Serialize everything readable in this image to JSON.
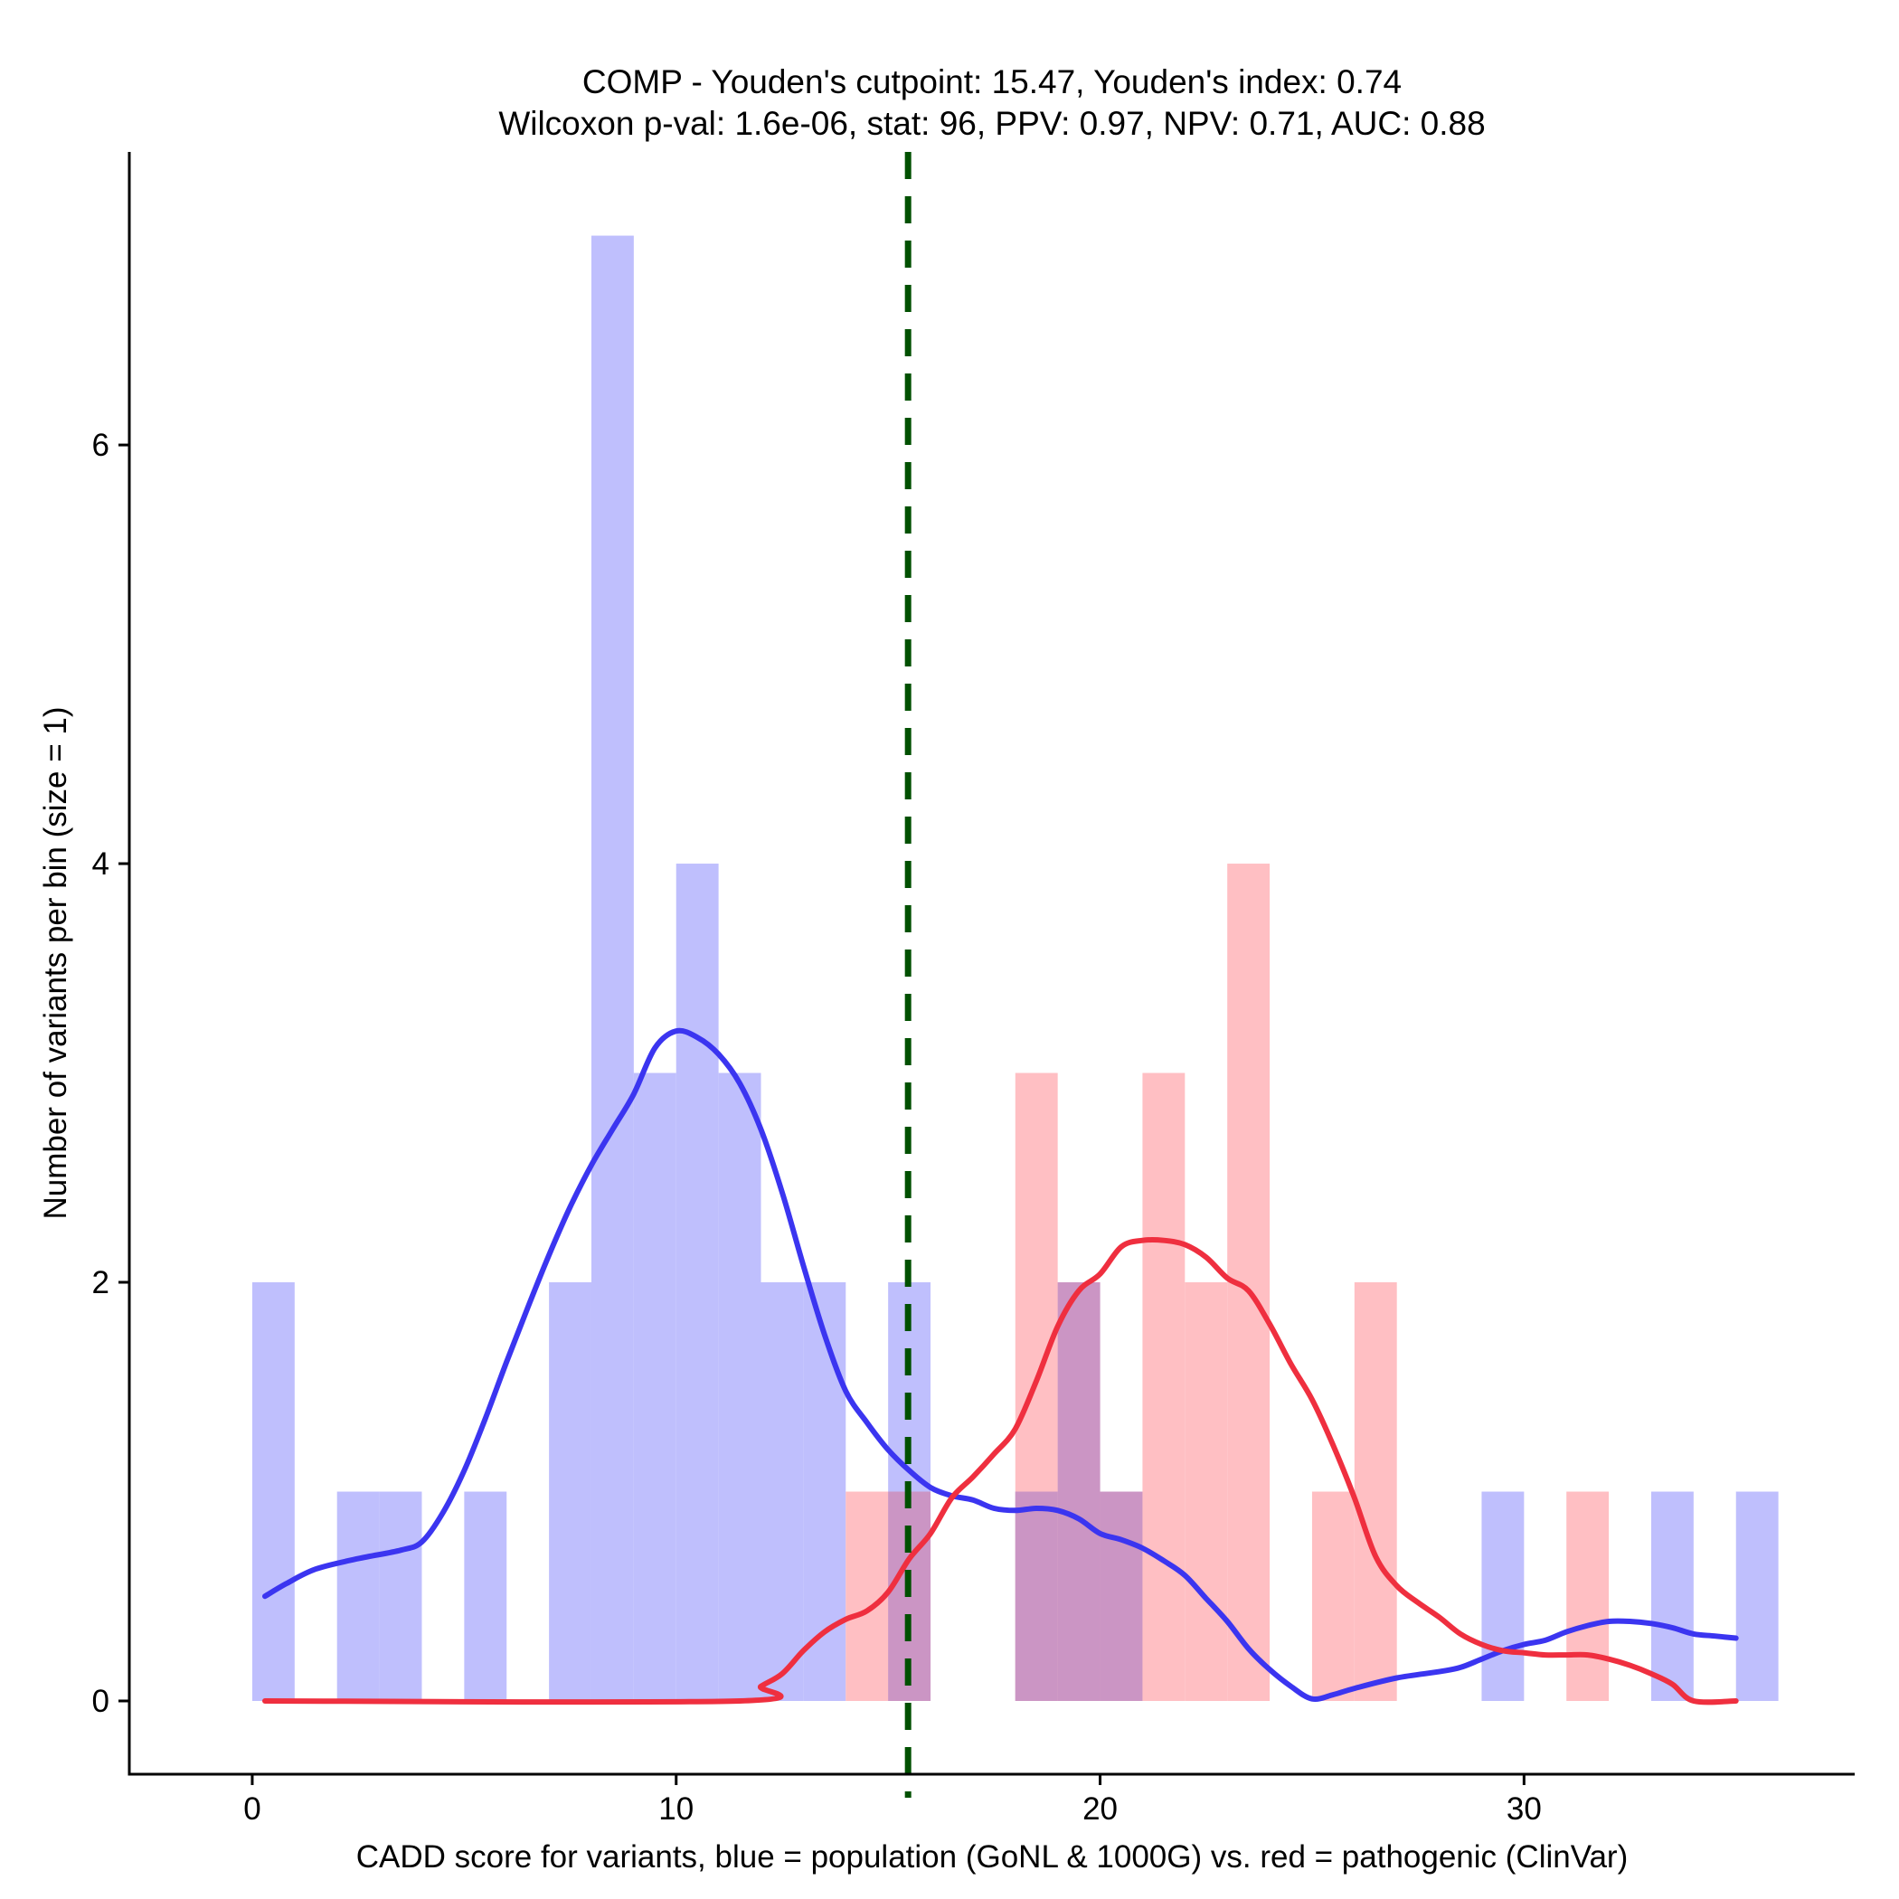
{
  "chart_data": {
    "type": "histogram",
    "title": "COMP - Youden's cutpoint: 15.47, Youden's index: 0.74",
    "subtitle": "Wilcoxon p-val: 1.6e-06, stat: 96, PPV: 0.97, NPV: 0.71, AUC: 0.88",
    "xlabel": "CADD score for variants, blue = population (GoNL & 1000G) vs. red = pathogenic (ClinVar)",
    "ylabel": "Number of variants per bin (size = 1)",
    "xlim": [
      -2.9,
      37.8
    ],
    "ylim": [
      -0.35,
      7.4
    ],
    "x_ticks": [
      0,
      10,
      20,
      30
    ],
    "y_ticks": [
      0,
      2,
      4,
      6
    ],
    "bin_width": 1,
    "cutpoint": 15.47,
    "colors": {
      "population_bar": "#bfbffd",
      "pathogenic_bar": "#ffbfc3",
      "overlap_bar": "#cb95c4",
      "population_line": "#3b35f0",
      "pathogenic_line": "#ef2f3f",
      "cutpoint_line": "#005000"
    },
    "series": [
      {
        "name": "population (GoNL & 1000G)",
        "bins": [
          {
            "x": 0,
            "count": 2
          },
          {
            "x": 2,
            "count": 1
          },
          {
            "x": 3,
            "count": 1
          },
          {
            "x": 5,
            "count": 1
          },
          {
            "x": 7,
            "count": 2
          },
          {
            "x": 8,
            "count": 7
          },
          {
            "x": 9,
            "count": 3
          },
          {
            "x": 10,
            "count": 4
          },
          {
            "x": 11,
            "count": 3
          },
          {
            "x": 12,
            "count": 2
          },
          {
            "x": 13,
            "count": 2
          },
          {
            "x": 15,
            "count": 2
          },
          {
            "x": 18,
            "count": 1
          },
          {
            "x": 19,
            "count": 2
          },
          {
            "x": 20,
            "count": 1
          },
          {
            "x": 29,
            "count": 1
          },
          {
            "x": 33,
            "count": 1
          },
          {
            "x": 35,
            "count": 1
          }
        ],
        "density": [
          [
            0.3,
            0.5
          ],
          [
            0.8,
            0.56
          ],
          [
            1.5,
            0.63
          ],
          [
            2.5,
            0.68
          ],
          [
            3.5,
            0.72
          ],
          [
            4.0,
            0.76
          ],
          [
            4.5,
            0.9
          ],
          [
            5.0,
            1.1
          ],
          [
            5.5,
            1.35
          ],
          [
            6.0,
            1.62
          ],
          [
            6.5,
            1.88
          ],
          [
            7.0,
            2.13
          ],
          [
            7.5,
            2.36
          ],
          [
            8.0,
            2.56
          ],
          [
            8.5,
            2.73
          ],
          [
            9.0,
            2.9
          ],
          [
            9.5,
            3.12
          ],
          [
            10.0,
            3.2
          ],
          [
            10.5,
            3.17
          ],
          [
            11.0,
            3.09
          ],
          [
            11.5,
            2.95
          ],
          [
            12.0,
            2.73
          ],
          [
            12.5,
            2.43
          ],
          [
            13.0,
            2.08
          ],
          [
            13.5,
            1.75
          ],
          [
            14.0,
            1.48
          ],
          [
            14.5,
            1.33
          ],
          [
            15.0,
            1.2
          ],
          [
            15.5,
            1.1
          ],
          [
            16.0,
            1.02
          ],
          [
            16.5,
            0.98
          ],
          [
            17.0,
            0.96
          ],
          [
            17.5,
            0.92
          ],
          [
            18.0,
            0.91
          ],
          [
            18.5,
            0.92
          ],
          [
            19.0,
            0.91
          ],
          [
            19.5,
            0.87
          ],
          [
            20.0,
            0.8
          ],
          [
            20.5,
            0.77
          ],
          [
            21.0,
            0.73
          ],
          [
            21.5,
            0.67
          ],
          [
            22.0,
            0.6
          ],
          [
            22.5,
            0.49
          ],
          [
            23.0,
            0.38
          ],
          [
            23.5,
            0.25
          ],
          [
            24.0,
            0.15
          ],
          [
            24.5,
            0.07
          ],
          [
            25.0,
            0.01
          ],
          [
            25.5,
            0.03
          ],
          [
            26.0,
            0.06
          ],
          [
            27.0,
            0.11
          ],
          [
            28.0,
            0.14
          ],
          [
            28.5,
            0.16
          ],
          [
            29.0,
            0.2
          ],
          [
            29.5,
            0.24
          ],
          [
            30.0,
            0.27
          ],
          [
            30.5,
            0.29
          ],
          [
            31.0,
            0.33
          ],
          [
            31.5,
            0.36
          ],
          [
            32.0,
            0.38
          ],
          [
            32.5,
            0.38
          ],
          [
            33.0,
            0.37
          ],
          [
            33.5,
            0.35
          ],
          [
            34.0,
            0.32
          ],
          [
            34.5,
            0.31
          ],
          [
            35.0,
            0.3
          ]
        ]
      },
      {
        "name": "pathogenic (ClinVar)",
        "bins": [
          {
            "x": 14,
            "count": 1
          },
          {
            "x": 15,
            "count": 1
          },
          {
            "x": 18,
            "count": 3
          },
          {
            "x": 19,
            "count": 2
          },
          {
            "x": 20,
            "count": 1
          },
          {
            "x": 21,
            "count": 3
          },
          {
            "x": 22,
            "count": 2
          },
          {
            "x": 23,
            "count": 4
          },
          {
            "x": 25,
            "count": 1
          },
          {
            "x": 26,
            "count": 2
          },
          {
            "x": 31,
            "count": 1
          }
        ],
        "density": [
          [
            0.3,
            0.0
          ],
          [
            11.5,
            0.0
          ],
          [
            12.0,
            0.07
          ],
          [
            12.5,
            0.13
          ],
          [
            13.0,
            0.24
          ],
          [
            13.5,
            0.33
          ],
          [
            14.0,
            0.39
          ],
          [
            14.5,
            0.43
          ],
          [
            15.0,
            0.52
          ],
          [
            15.5,
            0.68
          ],
          [
            16.0,
            0.8
          ],
          [
            16.5,
            0.97
          ],
          [
            17.0,
            1.07
          ],
          [
            17.5,
            1.18
          ],
          [
            18.0,
            1.3
          ],
          [
            18.5,
            1.53
          ],
          [
            19.0,
            1.79
          ],
          [
            19.5,
            1.96
          ],
          [
            20.0,
            2.04
          ],
          [
            20.5,
            2.17
          ],
          [
            21.0,
            2.2
          ],
          [
            21.5,
            2.2
          ],
          [
            22.0,
            2.18
          ],
          [
            22.5,
            2.12
          ],
          [
            23.0,
            2.02
          ],
          [
            23.5,
            1.96
          ],
          [
            24.0,
            1.8
          ],
          [
            24.5,
            1.61
          ],
          [
            25.0,
            1.44
          ],
          [
            25.5,
            1.22
          ],
          [
            26.0,
            0.97
          ],
          [
            26.5,
            0.69
          ],
          [
            27.0,
            0.55
          ],
          [
            27.5,
            0.47
          ],
          [
            28.0,
            0.4
          ],
          [
            28.5,
            0.32
          ],
          [
            29.0,
            0.27
          ],
          [
            29.5,
            0.24
          ],
          [
            30.0,
            0.23
          ],
          [
            30.5,
            0.22
          ],
          [
            31.0,
            0.22
          ],
          [
            31.5,
            0.22
          ],
          [
            32.0,
            0.2
          ],
          [
            32.5,
            0.17
          ],
          [
            33.0,
            0.13
          ],
          [
            33.5,
            0.08
          ],
          [
            34.0,
            0.0
          ],
          [
            35.0,
            0.0
          ]
        ]
      }
    ]
  }
}
